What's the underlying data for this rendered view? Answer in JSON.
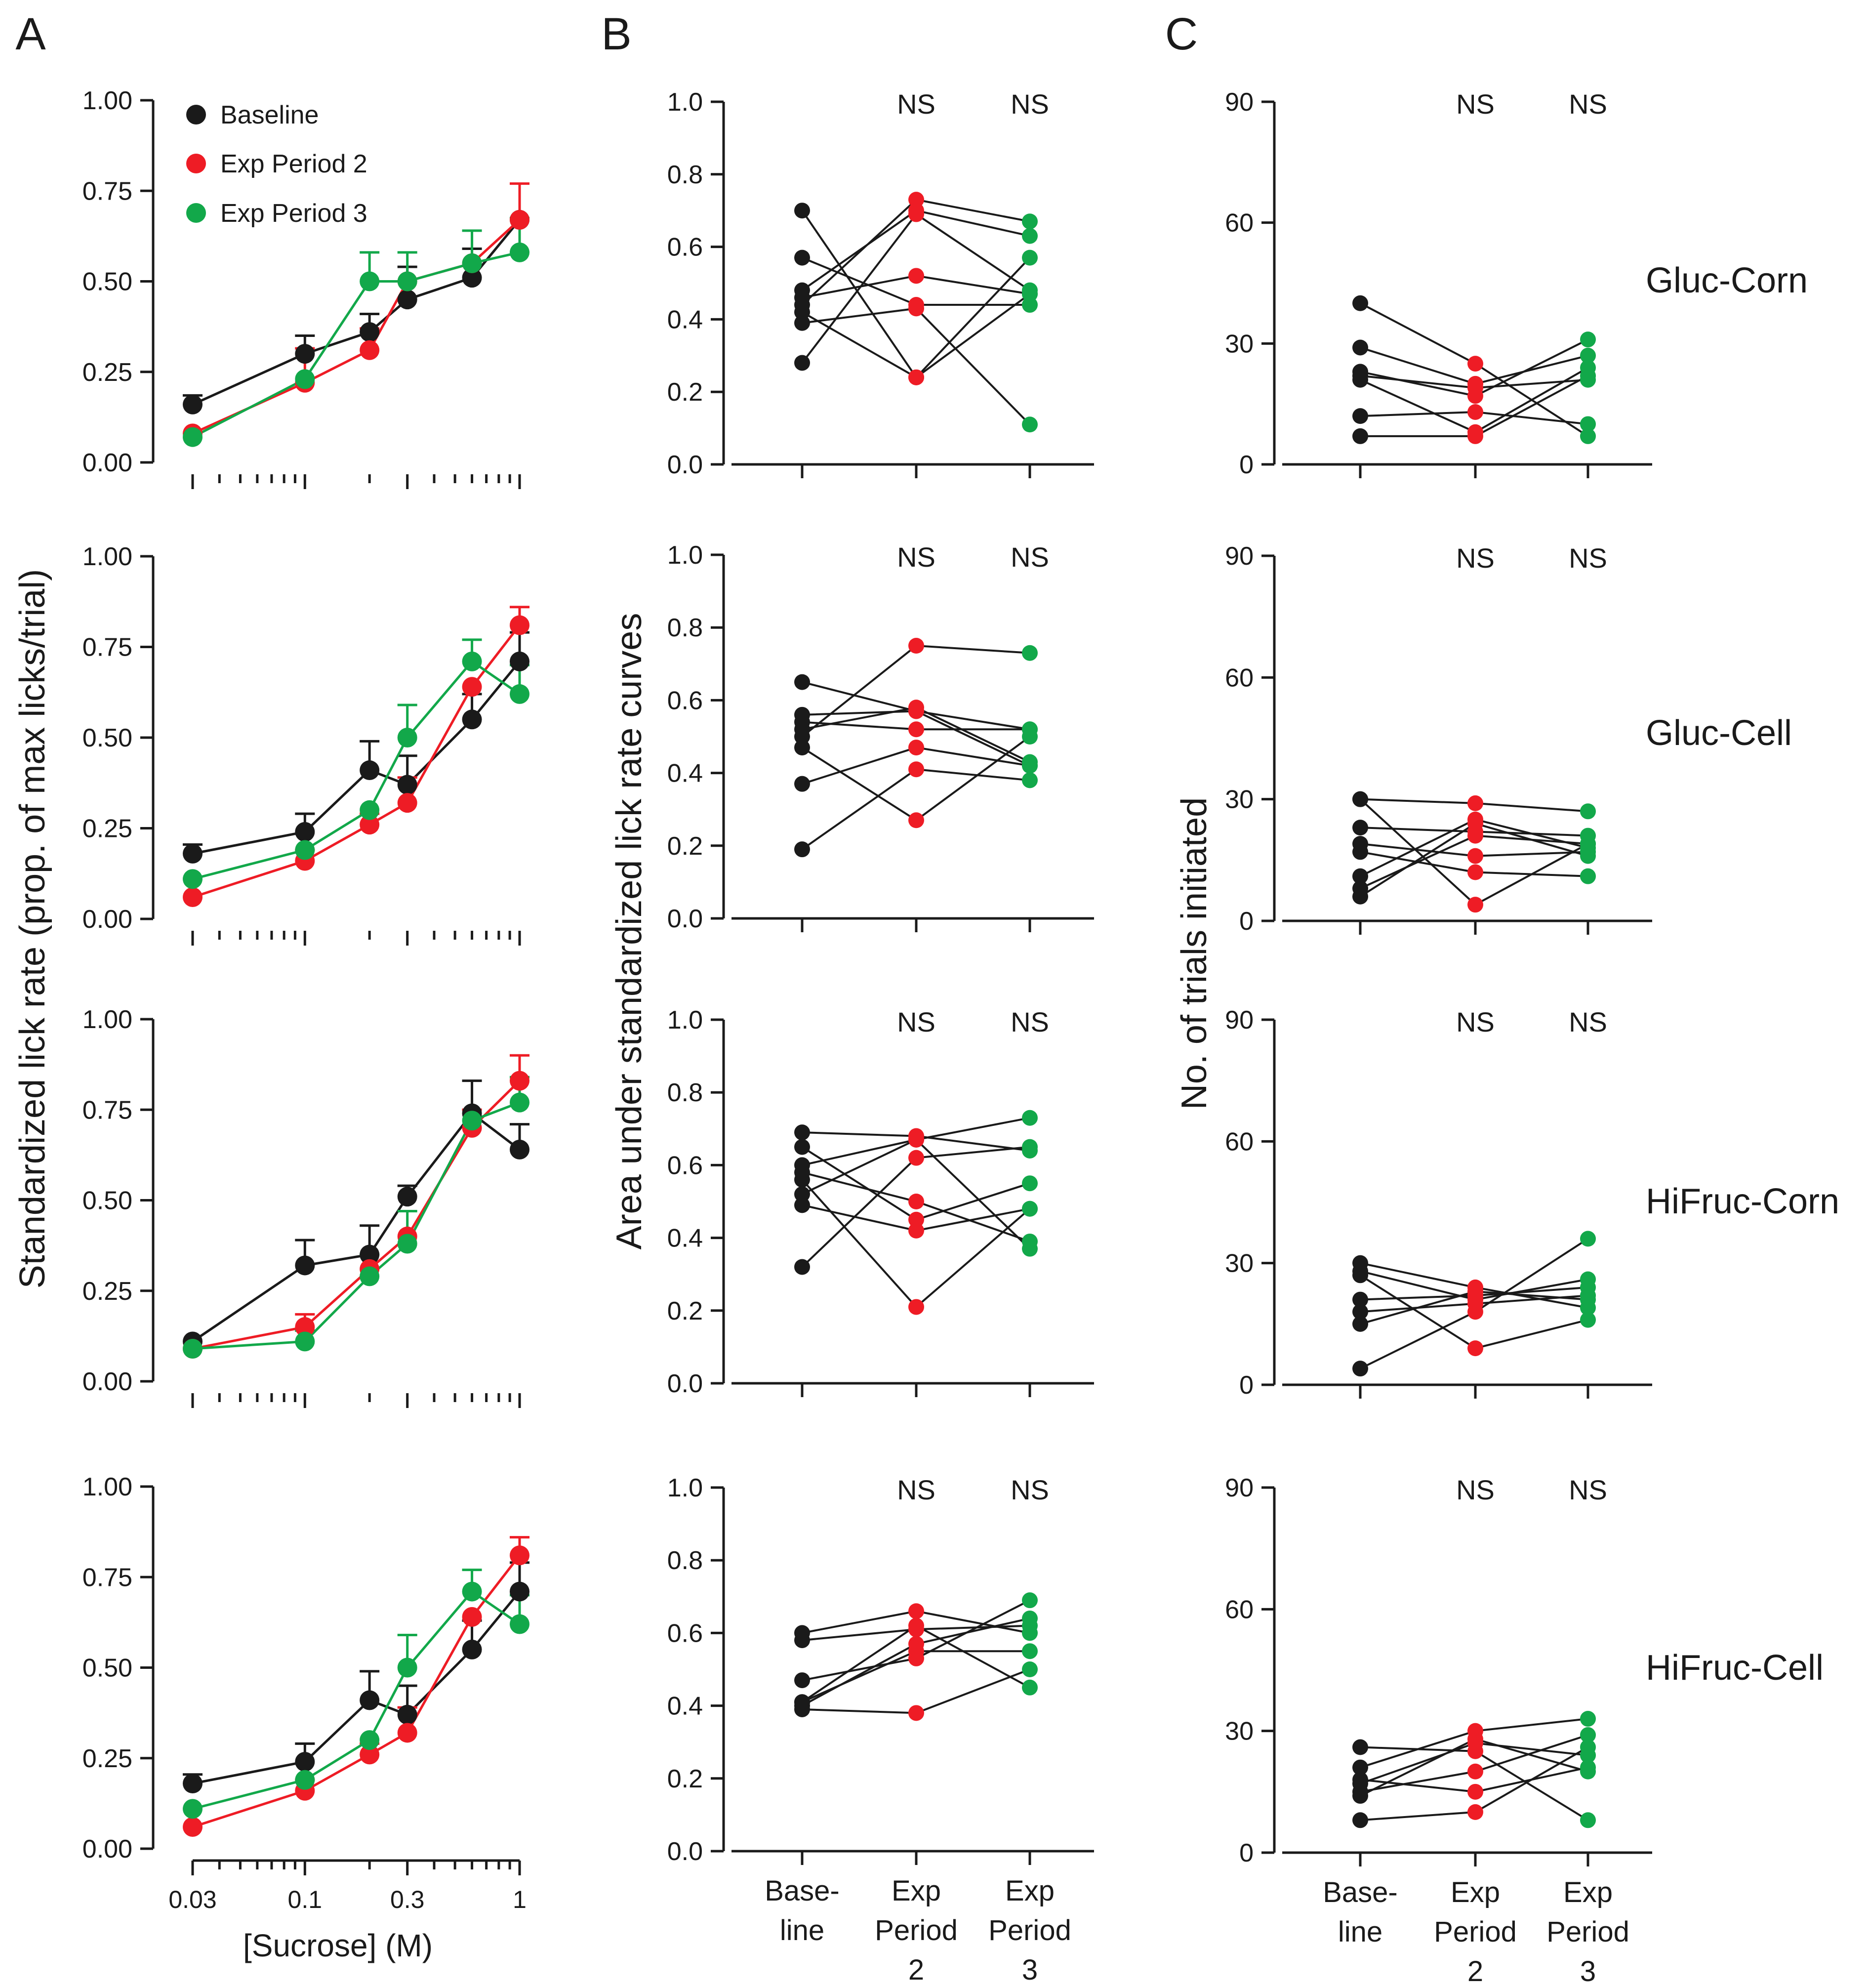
{
  "colors": {
    "baseline": "#1a1a1a",
    "period2": "#ee1c25",
    "period3": "#12a84a",
    "axis": "#1a1a1a"
  },
  "figure": {
    "panel_letters": [
      "A",
      "B",
      "C"
    ],
    "legend": [
      "Baseline",
      "Exp Period 2",
      "Exp Period 3"
    ],
    "row_labels": [
      "Gluc-Corn",
      "Gluc-Cell",
      "HiFruc-Corn",
      "HiFruc-Cell"
    ],
    "ns_label": "NS",
    "a_ylabel": "Standardized lick rate (prop. of max licks/trial)",
    "a_xlabel": "[Sucrose] (M)",
    "b_ylabel": "Area under standardized lick rate curves",
    "c_ylabel": "No. of trials initiated",
    "a_yticks": [
      "0.00",
      "0.25",
      "0.50",
      "0.75",
      "1.00"
    ],
    "a_xticks": [
      "0.03",
      "0.1",
      "0.3",
      "1"
    ],
    "b_yticks": [
      "0.0",
      "0.2",
      "0.4",
      "0.6",
      "0.8",
      "1.0"
    ],
    "c_yticks": [
      "0",
      "30",
      "60",
      "90"
    ],
    "period_labels": [
      [
        "Base-",
        "line"
      ],
      [
        "Exp",
        "Period",
        "2"
      ],
      [
        "Exp",
        "Period",
        "3"
      ]
    ]
  },
  "chart_data": [
    {
      "type": "line",
      "panel": "A",
      "row": "Gluc-Corn",
      "x": [
        0.03,
        0.1,
        0.2,
        0.3,
        0.6,
        1.0
      ],
      "xscale": "log",
      "ylim": [
        0,
        1
      ],
      "series": [
        {
          "name": "Baseline",
          "values": [
            0.16,
            0.3,
            0.36,
            0.45,
            0.51,
            0.67
          ],
          "err": [
            0.025,
            0.05,
            0.05,
            0.09,
            0.08,
            0.0
          ]
        },
        {
          "name": "Exp Period 2",
          "values": [
            0.08,
            0.22,
            0.31,
            0.5,
            0.55,
            0.67
          ],
          "err": [
            0.0,
            0.095,
            0.06,
            0.0,
            0.0,
            0.1
          ]
        },
        {
          "name": "Exp Period 3",
          "values": [
            0.07,
            0.23,
            0.5,
            0.5,
            0.55,
            0.58
          ],
          "err": [
            0.0,
            0.0,
            0.08,
            0.08,
            0.09,
            0.095
          ]
        }
      ]
    },
    {
      "type": "line",
      "panel": "A",
      "row": "Gluc-Cell",
      "x": [
        0.03,
        0.1,
        0.2,
        0.3,
        0.6,
        1.0
      ],
      "xscale": "log",
      "ylim": [
        0,
        1
      ],
      "series": [
        {
          "name": "Baseline",
          "values": [
            0.18,
            0.24,
            0.41,
            0.37,
            0.55,
            0.71
          ],
          "err": [
            0.025,
            0.05,
            0.08,
            0.08,
            0.07,
            0.08
          ]
        },
        {
          "name": "Exp Period 2",
          "values": [
            0.06,
            0.16,
            0.26,
            0.32,
            0.64,
            0.81
          ],
          "err": [
            0.0,
            0.03,
            0.03,
            0.07,
            0.0,
            0.05
          ]
        },
        {
          "name": "Exp Period 3",
          "values": [
            0.11,
            0.19,
            0.3,
            0.5,
            0.71,
            0.62
          ],
          "err": [
            0.0,
            0.0,
            0.0,
            0.09,
            0.06,
            0.08
          ]
        }
      ]
    },
    {
      "type": "line",
      "panel": "A",
      "row": "HiFruc-Corn",
      "x": [
        0.03,
        0.1,
        0.2,
        0.3,
        0.6,
        1.0
      ],
      "xscale": "log",
      "ylim": [
        0,
        1
      ],
      "series": [
        {
          "name": "Baseline",
          "values": [
            0.11,
            0.32,
            0.35,
            0.51,
            0.74,
            0.64
          ],
          "err": [
            0.0,
            0.07,
            0.08,
            0.03,
            0.09,
            0.07
          ]
        },
        {
          "name": "Exp Period 2",
          "values": [
            0.09,
            0.15,
            0.31,
            0.4,
            0.7,
            0.83
          ],
          "err": [
            0.0,
            0.035,
            0.0,
            0.0,
            0.05,
            0.07
          ]
        },
        {
          "name": "Exp Period 3",
          "values": [
            0.09,
            0.11,
            0.29,
            0.38,
            0.72,
            0.77
          ],
          "err": [
            0.0,
            0.03,
            0.06,
            0.09,
            0.0,
            0.07
          ]
        }
      ]
    },
    {
      "type": "line",
      "panel": "A",
      "row": "HiFruc-Cell",
      "x": [
        0.03,
        0.1,
        0.2,
        0.3,
        0.6,
        1.0
      ],
      "xscale": "log",
      "ylim": [
        0,
        1
      ],
      "xlabel": "[Sucrose] (M)",
      "series": [
        {
          "name": "Baseline",
          "values": [
            0.18,
            0.24,
            0.41,
            0.37,
            0.55,
            0.71
          ],
          "err": [
            0.025,
            0.05,
            0.08,
            0.08,
            0.08,
            0.08
          ]
        },
        {
          "name": "Exp Period 2",
          "values": [
            0.06,
            0.16,
            0.26,
            0.32,
            0.64,
            0.81
          ],
          "err": [
            0.0,
            0.03,
            0.03,
            0.07,
            0.0,
            0.05
          ]
        },
        {
          "name": "Exp Period 3",
          "values": [
            0.11,
            0.19,
            0.3,
            0.5,
            0.71,
            0.62
          ],
          "err": [
            0.0,
            0.0,
            0.0,
            0.09,
            0.06,
            0.08
          ]
        }
      ]
    },
    {
      "type": "scatter",
      "panel": "B",
      "row": "Gluc-Corn",
      "categories": [
        "Baseline",
        "Exp Period 2",
        "Exp Period 3"
      ],
      "ylim": [
        0,
        1
      ],
      "subjects": [
        [
          0.7,
          0.24,
          0.47
        ],
        [
          0.57,
          0.44,
          0.44
        ],
        [
          0.48,
          0.7,
          0.63
        ],
        [
          0.46,
          0.52,
          0.47
        ],
        [
          0.44,
          0.73,
          0.67
        ],
        [
          0.42,
          0.24,
          0.57
        ],
        [
          0.39,
          0.43,
          0.11
        ],
        [
          0.28,
          0.69,
          0.48
        ]
      ]
    },
    {
      "type": "scatter",
      "panel": "B",
      "row": "Gluc-Cell",
      "categories": [
        "Baseline",
        "Exp Period 2",
        "Exp Period 3"
      ],
      "ylim": [
        0,
        1
      ],
      "subjects": [
        [
          0.65,
          0.57,
          0.42
        ],
        [
          0.56,
          0.57,
          0.52
        ],
        [
          0.54,
          0.52,
          0.52
        ],
        [
          0.52,
          0.58,
          0.43
        ],
        [
          0.5,
          0.75,
          0.73
        ],
        [
          0.47,
          0.27,
          0.5
        ],
        [
          0.37,
          0.47,
          0.42
        ],
        [
          0.19,
          0.41,
          0.38
        ]
      ]
    },
    {
      "type": "scatter",
      "panel": "B",
      "row": "HiFruc-Corn",
      "categories": [
        "Baseline",
        "Exp Period 2",
        "Exp Period 3"
      ],
      "ylim": [
        0,
        1
      ],
      "subjects": [
        [
          0.69,
          0.68,
          0.64
        ],
        [
          0.65,
          0.45,
          0.55
        ],
        [
          0.6,
          0.67,
          0.73
        ],
        [
          0.58,
          0.5,
          0.39
        ],
        [
          0.56,
          0.21,
          0.48
        ],
        [
          0.52,
          0.67,
          0.37
        ],
        [
          0.49,
          0.42,
          0.48
        ],
        [
          0.32,
          0.62,
          0.65
        ]
      ]
    },
    {
      "type": "scatter",
      "panel": "B",
      "row": "HiFruc-Cell",
      "categories": [
        "Baseline",
        "Exp Period 2",
        "Exp Period 3"
      ],
      "ylim": [
        0,
        1
      ],
      "subjects": [
        [
          0.6,
          0.66,
          0.6
        ],
        [
          0.58,
          0.61,
          0.62
        ],
        [
          0.47,
          0.53,
          0.69
        ],
        [
          0.41,
          0.62,
          0.45
        ],
        [
          0.4,
          0.57,
          0.64
        ],
        [
          0.39,
          0.38,
          0.5
        ],
        [
          0.41,
          0.55,
          0.55
        ]
      ]
    },
    {
      "type": "scatter",
      "panel": "C",
      "row": "Gluc-Corn",
      "categories": [
        "Baseline",
        "Exp Period 2",
        "Exp Period 3"
      ],
      "ylim": [
        0,
        90
      ],
      "subjects": [
        [
          40,
          25,
          7
        ],
        [
          29,
          20,
          27
        ],
        [
          23,
          17,
          31
        ],
        [
          22,
          19,
          21
        ],
        [
          21,
          8,
          24
        ],
        [
          12,
          13,
          10
        ],
        [
          7,
          7,
          22
        ]
      ]
    },
    {
      "type": "scatter",
      "panel": "C",
      "row": "Gluc-Cell",
      "categories": [
        "Baseline",
        "Exp Period 2",
        "Exp Period 3"
      ],
      "ylim": [
        0,
        90
      ],
      "subjects": [
        [
          30,
          29,
          27
        ],
        [
          30,
          4,
          19
        ],
        [
          23,
          22,
          21
        ],
        [
          19,
          16,
          17
        ],
        [
          17,
          12,
          11
        ],
        [
          11,
          25,
          18
        ],
        [
          8,
          21,
          19
        ],
        [
          6,
          24,
          16
        ]
      ]
    },
    {
      "type": "scatter",
      "panel": "C",
      "row": "HiFruc-Corn",
      "categories": [
        "Baseline",
        "Exp Period 2",
        "Exp Period 3"
      ],
      "ylim": [
        0,
        90
      ],
      "subjects": [
        [
          30,
          24,
          19
        ],
        [
          28,
          21,
          26
        ],
        [
          27,
          9,
          16
        ],
        [
          21,
          22,
          24
        ],
        [
          18,
          20,
          22
        ],
        [
          15,
          23,
          21
        ],
        [
          4,
          18,
          36
        ]
      ]
    },
    {
      "type": "scatter",
      "panel": "C",
      "row": "HiFruc-Cell",
      "categories": [
        "Baseline",
        "Exp Period 2",
        "Exp Period 3"
      ],
      "ylim": [
        0,
        90
      ],
      "subjects": [
        [
          26,
          25,
          8
        ],
        [
          21,
          30,
          33
        ],
        [
          18,
          15,
          21
        ],
        [
          17,
          27,
          24
        ],
        [
          15,
          20,
          29
        ],
        [
          14,
          28,
          20
        ],
        [
          8,
          10,
          26
        ]
      ]
    }
  ]
}
